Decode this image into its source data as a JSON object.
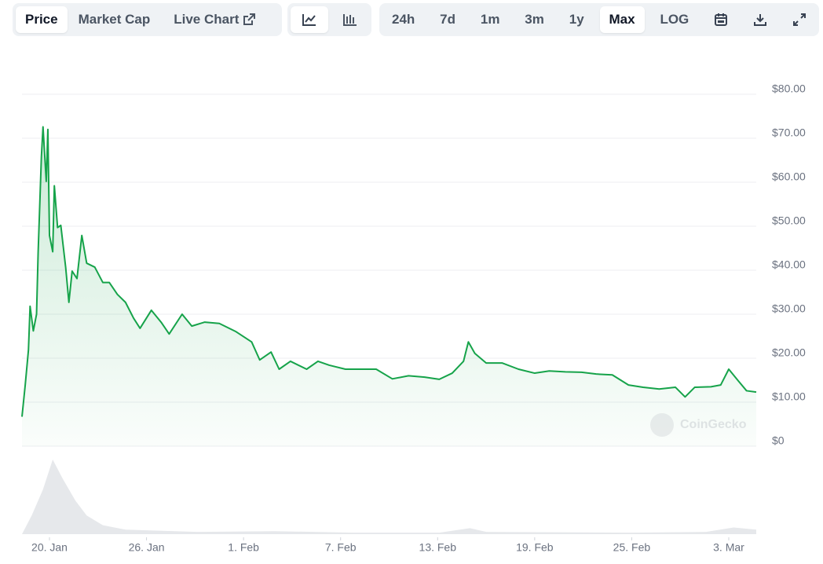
{
  "toolbar": {
    "tabs": [
      "Price",
      "Market Cap",
      "Live Chart"
    ],
    "active_tab": 0,
    "active_view": 0,
    "ranges": [
      "24h",
      "7d",
      "1m",
      "3m",
      "1y",
      "Max",
      "LOG"
    ],
    "active_range": 5
  },
  "chart_data": {
    "type": "line",
    "watermark": "CoinGecko",
    "x": [
      18.3,
      18.5,
      18.7,
      18.8,
      19.0,
      19.2,
      19.3,
      19.5,
      19.6,
      19.8,
      19.9,
      20.0,
      20.2,
      20.3,
      20.5,
      20.7,
      21.0,
      21.2,
      21.4,
      21.7,
      22.0,
      22.3,
      22.8,
      23.3,
      23.7,
      24.2,
      24.7,
      25.2,
      25.6,
      26.3,
      26.9,
      27.4,
      28.2,
      28.8,
      29.6,
      30.5,
      31.5,
      32.5,
      33.0,
      33.7,
      34.2,
      34.9,
      35.9,
      36.6,
      37.3,
      38.3,
      39.3,
      40.2,
      41.2,
      42.2,
      43.2,
      44.1,
      44.9,
      45.6,
      45.9,
      46.3,
      47.0,
      48.0,
      49.0,
      50.0,
      50.9,
      51.9,
      52.9,
      53.8,
      54.8,
      55.8,
      56.7,
      57.7,
      58.7,
      59.3,
      59.9,
      60.9,
      61.5,
      62.0,
      62.6,
      63.1,
      63.7
    ],
    "series": [
      {
        "color": "#16a34a",
        "values": [
          6.7,
          13.9,
          21.9,
          31.8,
          26.2,
          30.0,
          44.2,
          65.8,
          72.6,
          60.2,
          72.0,
          47.9,
          44.2,
          59.2,
          49.7,
          50.2,
          40.7,
          32.7,
          39.8,
          38.1,
          47.9,
          41.6,
          40.7,
          37.2,
          37.2,
          34.5,
          32.7,
          29.1,
          26.8,
          30.9,
          28.2,
          25.5,
          30.0,
          27.3,
          28.2,
          27.9,
          26.1,
          23.7,
          19.6,
          21.4,
          17.5,
          19.3,
          17.5,
          19.3,
          18.4,
          17.5,
          17.5,
          17.5,
          15.3,
          16.0,
          15.7,
          15.2,
          16.6,
          19.3,
          23.7,
          21.1,
          18.9,
          18.9,
          17.5,
          16.6,
          17.1,
          16.9,
          16.8,
          16.4,
          16.2,
          13.9,
          13.4,
          13.0,
          13.4,
          11.2,
          13.4,
          13.5,
          13.9,
          17.5,
          14.8,
          12.6,
          12.3
        ]
      }
    ],
    "volume": {
      "color": "#e6e8eb",
      "vlim": [
        0,
        100
      ],
      "x": [
        18.3,
        18.9,
        19.6,
        20.2,
        20.8,
        21.6,
        22.3,
        23.3,
        24.7,
        29.1,
        33.9,
        38.8,
        44.1,
        46.0,
        47.0,
        55.8,
        60.6,
        62.3,
        63.7
      ],
      "values": [
        0,
        25,
        60,
        100,
        75,
        45,
        25,
        12,
        6,
        3,
        4,
        2,
        2,
        8,
        3,
        2,
        3,
        9,
        6
      ]
    },
    "xlim": [
      18.3,
      63.7
    ],
    "xticks": [
      {
        "value": 20,
        "label": "20. Jan"
      },
      {
        "value": 26,
        "label": "26. Jan"
      },
      {
        "value": 32,
        "label": "1. Feb"
      },
      {
        "value": 38,
        "label": "7. Feb"
      },
      {
        "value": 44,
        "label": "13. Feb"
      },
      {
        "value": 50,
        "label": "19. Feb"
      },
      {
        "value": 56,
        "label": "25. Feb"
      },
      {
        "value": 62,
        "label": "3. Mar"
      }
    ],
    "ylim": [
      0,
      80
    ],
    "yticks": [
      {
        "value": 0,
        "label": "$0"
      },
      {
        "value": 10,
        "label": "$10.00"
      },
      {
        "value": 20,
        "label": "$20.00"
      },
      {
        "value": 30,
        "label": "$30.00"
      },
      {
        "value": 40,
        "label": "$40.00"
      },
      {
        "value": 50,
        "label": "$50.00"
      },
      {
        "value": 60,
        "label": "$60.00"
      },
      {
        "value": 70,
        "label": "$70.00"
      },
      {
        "value": 80,
        "label": "$80.00"
      }
    ],
    "grid": true
  }
}
